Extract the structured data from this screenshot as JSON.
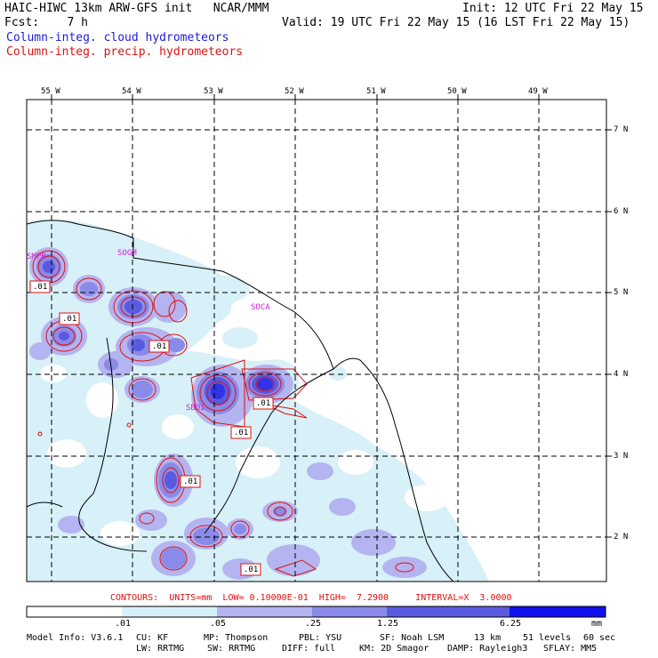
{
  "header": {
    "model_title": "HAIC-HIWC 13km ARW-GFS init   NCAR/MMM",
    "forecast": "Fcst:    7 h",
    "init": "Init: 12 UTC Fri 22 May 15",
    "valid": "Valid: 19 UTC Fri 22 May 15 (16 LST Fri 22 May 15)",
    "field_cloud": "Column-integ. cloud hydrometeors",
    "field_precip": "Column-integ. precip. hydrometeors"
  },
  "colors": {
    "cloud_text": "#1a1adc",
    "precip_text": "#e01010",
    "contour_line": "#e01010",
    "station_label": "#d020d0",
    "shade_1": "#d8f0f8",
    "shade_2": "#b4b4f0",
    "shade_3": "#8a8ae8",
    "shade_4": "#5a5ae0",
    "shade_5": "#3232e6",
    "shade_6": "#1010f0"
  },
  "map": {
    "longitude_labels": [
      "55 W",
      "54 W",
      "53 W",
      "52 W",
      "51 W",
      "50 W",
      "49 W"
    ],
    "latitude_labels": [
      "7 N",
      "6 N",
      "5 N",
      "4 N",
      "3 N",
      "2 N"
    ],
    "stations": [
      "SMPB",
      "SOGM",
      "SOCA",
      "SBOI"
    ],
    "contour_labels": [
      ".01",
      ".01",
      ".01",
      ".01",
      ".01",
      ".01",
      ".01"
    ]
  },
  "contour_info": "CONTOURS:  UNITS=mm  LOW= 0.10000E-01  HIGH=  7.2900     INTERVAL=X  3.0000",
  "colorbar": {
    "ticks": [
      ".01",
      ".05",
      ".25",
      "1.25",
      "6.25"
    ],
    "unit": "mm"
  },
  "model_info": {
    "line1": [
      "Model Info: V3.6.1",
      "CU: KF",
      "MP: Thompson",
      "PBL: YSU",
      "SF: Noah LSM",
      "13 km",
      "51 levels",
      "60 sec"
    ],
    "line2": [
      "LW: RRTMG",
      "SW: RRTMG",
      "DIFF: full",
      "KM: 2D Smagor",
      "DAMP: Rayleigh3",
      "SFLAY: MM5"
    ]
  }
}
